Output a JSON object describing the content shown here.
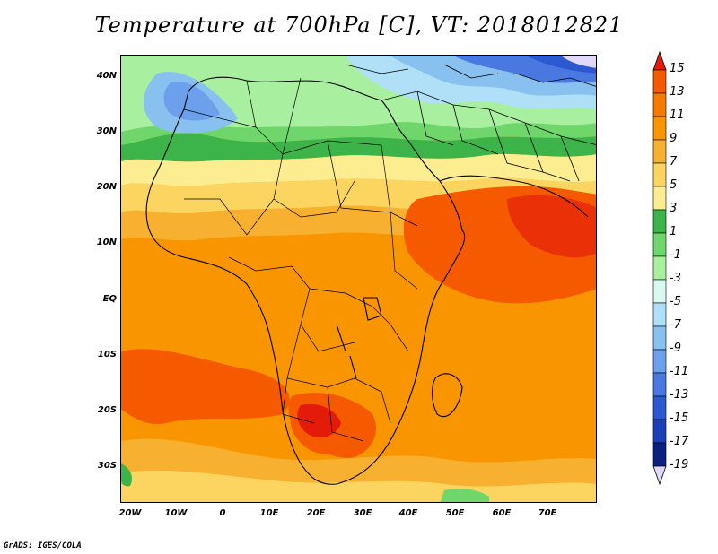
{
  "title": "Temperature at 700hPa [C], VT: 2018012821",
  "footer": "GrADS: IGES/COLA",
  "lat_labels": [
    "40N",
    "30N",
    "20N",
    "10N",
    "EQ",
    "10S",
    "20S",
    "30S"
  ],
  "lon_labels": [
    "20W",
    "10W",
    "0",
    "10E",
    "20E",
    "30E",
    "40E",
    "50E",
    "60E",
    "70E"
  ],
  "colorbar": {
    "labels": [
      "15",
      "13",
      "11",
      "9",
      "7",
      "5",
      "3",
      "1",
      "-1",
      "-3",
      "-5",
      "-7",
      "-9",
      "-11",
      "-13",
      "-15",
      "-17",
      "-19"
    ],
    "colors": [
      "#e41a0a",
      "#f55a00",
      "#f77a00",
      "#f89500",
      "#f8b030",
      "#fcd560",
      "#fcee90",
      "#3cb44a",
      "#6ed66a",
      "#a8f0a0",
      "#d8f8f0",
      "#b0e0f8",
      "#88c0f0",
      "#6ca0ec",
      "#4878e0",
      "#2c58d0",
      "#1c40b8",
      "#0c2080",
      "#e0d8f8"
    ]
  },
  "map_colors": {
    "hot_red": "#e41a0a",
    "orange_red": "#f55a00",
    "orange": "#f77a00",
    "orange_light": "#f89500",
    "amber": "#f8b030",
    "yellow": "#fcd560",
    "pale_yellow": "#fcee90",
    "green": "#3cb44a",
    "light_green": "#6ed66a",
    "pale_green": "#a8f0a0",
    "cyan": "#d8f8f0",
    "pale_blue": "#b0e0f8",
    "light_blue": "#88c0f0",
    "blue": "#4878e0",
    "dark_blue": "#2c58d0"
  }
}
